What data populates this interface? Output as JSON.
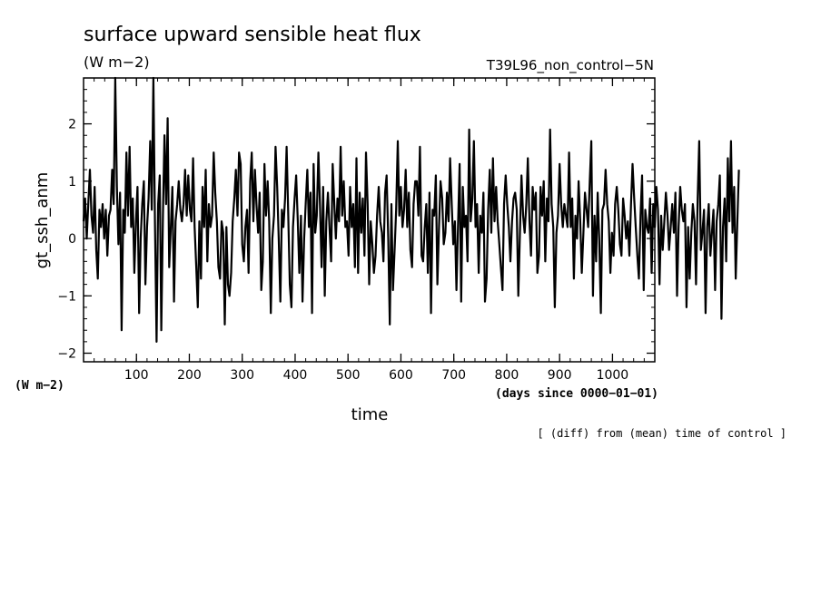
{
  "header": {
    "title": "surface upward sensible heat flux",
    "units": "(W m−2)",
    "run": "T39L96_non_control−5N"
  },
  "footer": {
    "left_units": "(W m−2)",
    "x_axis_units": "(days since 0000−01−01)",
    "note": "[ (diff) from (mean) time of control ]"
  },
  "chart_data": {
    "type": "line",
    "xlabel": "time",
    "ylabel": "gt_ssh_anm",
    "xlim": [
      0,
      1080
    ],
    "ylim": [
      -2.15,
      2.8
    ],
    "x_tick_values": [
      100,
      200,
      300,
      400,
      500,
      600,
      700,
      800,
      900,
      1000
    ],
    "x_tick_labels": [
      "100",
      "200",
      "300",
      "400",
      "500",
      "600",
      "700",
      "800",
      "900",
      "1000"
    ],
    "y_tick_values": [
      -2,
      -1,
      0,
      1,
      2
    ],
    "y_tick_labels": [
      "−2",
      "−1",
      "0",
      "1",
      "2"
    ],
    "grid": false,
    "series": [
      {
        "x_start": 0,
        "x_step": 3,
        "values": [
          0.3,
          0.7,
          0.0,
          0.6,
          1.2,
          0.4,
          0.1,
          0.9,
          -0.2,
          -0.7,
          0.5,
          0.2,
          0.6,
          0.0,
          0.5,
          -0.3,
          0.4,
          0.5,
          1.2,
          0.6,
          2.8,
          0.9,
          -0.1,
          0.8,
          -1.6,
          0.5,
          0.1,
          1.5,
          0.4,
          1.6,
          0.2,
          0.7,
          -0.6,
          0.3,
          0.9,
          -1.3,
          0.0,
          0.6,
          1.0,
          -0.8,
          0.2,
          0.7,
          1.7,
          0.5,
          2.8,
          0.3,
          -1.8,
          0.6,
          1.1,
          -1.6,
          0.4,
          1.8,
          0.6,
          2.1,
          -0.5,
          0.2,
          0.9,
          -1.1,
          0.3,
          0.6,
          1.0,
          0.5,
          0.3,
          0.6,
          1.2,
          0.4,
          1.1,
          0.5,
          0.3,
          1.4,
          0.2,
          -0.5,
          -1.2,
          0.3,
          -0.7,
          0.9,
          0.2,
          1.2,
          -0.4,
          0.6,
          0.2,
          0.4,
          1.5,
          0.8,
          0.3,
          -0.5,
          -0.7,
          0.3,
          0.1,
          -1.5,
          0.2,
          -0.8,
          -1.0,
          -0.6,
          0.3,
          0.7,
          1.2,
          0.4,
          1.5,
          1.3,
          -0.1,
          -0.4,
          0.2,
          0.5,
          -0.6,
          1.0,
          1.5,
          0.3,
          1.2,
          0.6,
          0.1,
          0.8,
          -0.9,
          -0.4,
          1.3,
          0.4,
          1.0,
          0.3,
          -1.3,
          0.0,
          0.4,
          1.6,
          0.9,
          0.0,
          -1.1,
          0.5,
          0.2,
          0.7,
          1.6,
          0.4,
          -0.8,
          -1.2,
          0.2,
          0.7,
          1.1,
          0.3,
          -0.6,
          0.4,
          -1.1,
          0.0,
          0.6,
          1.2,
          0.2,
          0.8,
          -1.3,
          1.3,
          0.1,
          0.4,
          1.5,
          0.6,
          -0.5,
          0.9,
          -1.0,
          0.3,
          0.8,
          0.2,
          -0.4,
          1.3,
          0.6,
          0.0,
          0.7,
          0.3,
          1.6,
          0.4,
          1.0,
          0.2,
          0.3,
          -0.3,
          0.9,
          0.2,
          0.6,
          -0.5,
          1.4,
          -0.6,
          0.8,
          0.1,
          0.7,
          -0.3,
          1.5,
          0.6,
          -0.8,
          0.3,
          -0.1,
          -0.6,
          -0.3,
          0.4,
          0.9,
          0.3,
          0.1,
          -0.4,
          0.8,
          1.1,
          0.0,
          -1.5,
          0.6,
          -0.9,
          -0.2,
          0.5,
          1.7,
          0.4,
          0.9,
          0.2,
          0.5,
          1.2,
          0.2,
          0.8,
          -0.2,
          -0.5,
          0.6,
          1.0,
          1.0,
          0.4,
          1.6,
          -0.3,
          -0.4,
          0.2,
          0.6,
          -0.6,
          0.8,
          -1.3,
          0.5,
          0.4,
          1.1,
          -0.8,
          0.2,
          1.0,
          0.7,
          -0.1,
          0.1,
          0.8,
          0.3,
          1.4,
          0.6,
          -0.1,
          0.3,
          -0.9,
          0.2,
          1.3,
          -1.1,
          0.9,
          0.2,
          0.4,
          -0.4,
          1.9,
          0.3,
          0.7,
          1.7,
          0.2,
          0.6,
          -0.6,
          0.4,
          0.1,
          0.8,
          -1.1,
          -0.7,
          0.5,
          1.2,
          0.1,
          1.4,
          0.3,
          0.9,
          0.3,
          -0.1,
          -0.5,
          -0.9,
          0.6,
          1.1,
          0.6,
          0.2,
          -0.4,
          0.3,
          0.7,
          0.8,
          0.5,
          -1.0,
          0.1,
          1.1,
          0.4,
          0.1,
          0.6,
          1.4,
          0.3,
          -0.3,
          0.9,
          0.5,
          0.8,
          -0.6,
          -0.3,
          0.9,
          0.4,
          1.0,
          -0.4,
          0.7,
          0.3,
          1.9,
          0.6,
          0.2,
          -1.2,
          0.1,
          0.4,
          1.3,
          0.6,
          0.2,
          0.6,
          0.4,
          0.2,
          1.5,
          0.2,
          0.7,
          -0.7,
          0.4,
          0.0,
          1.0,
          0.3,
          -0.6,
          0.1,
          0.8,
          0.5,
          0.2,
          1.0,
          1.7,
          -1.0,
          0.4,
          -0.4,
          0.8,
          0.0,
          -1.3,
          0.5,
          0.6,
          1.2,
          0.6,
          0.3,
          -0.6,
          0.1,
          -0.3,
          0.6,
          0.9,
          0.5,
          -0.1,
          -0.3,
          0.7,
          0.4,
          0.0,
          0.3,
          -0.3,
          0.6,
          1.3,
          0.7,
          0.2,
          -0.3,
          -0.7,
          0.4,
          1.1,
          -0.9,
          0.5,
          0.2,
          0.1,
          0.7,
          -0.6,
          0.6,
          0.2,
          0.9,
          0.5,
          -0.8,
          0.4,
          -0.2,
          0.3,
          0.8,
          0.4,
          -0.2,
          0.2,
          0.6,
          0.1,
          0.8,
          -1.0,
          0.2,
          0.9,
          0.5,
          0.3,
          0.6,
          -1.2,
          0.2,
          -0.7,
          0.1,
          0.6,
          0.3,
          -0.8,
          0.7,
          1.7,
          -0.2,
          0.1,
          0.5,
          -1.3,
          0.2,
          0.6,
          -0.3,
          0.1,
          0.5,
          -0.9,
          0.3,
          0.6,
          1.1,
          -1.4,
          0.2,
          0.7,
          -0.4,
          1.4,
          0.3,
          1.7,
          0.1,
          0.9,
          -0.7,
          0.3,
          1.2
        ]
      }
    ]
  }
}
